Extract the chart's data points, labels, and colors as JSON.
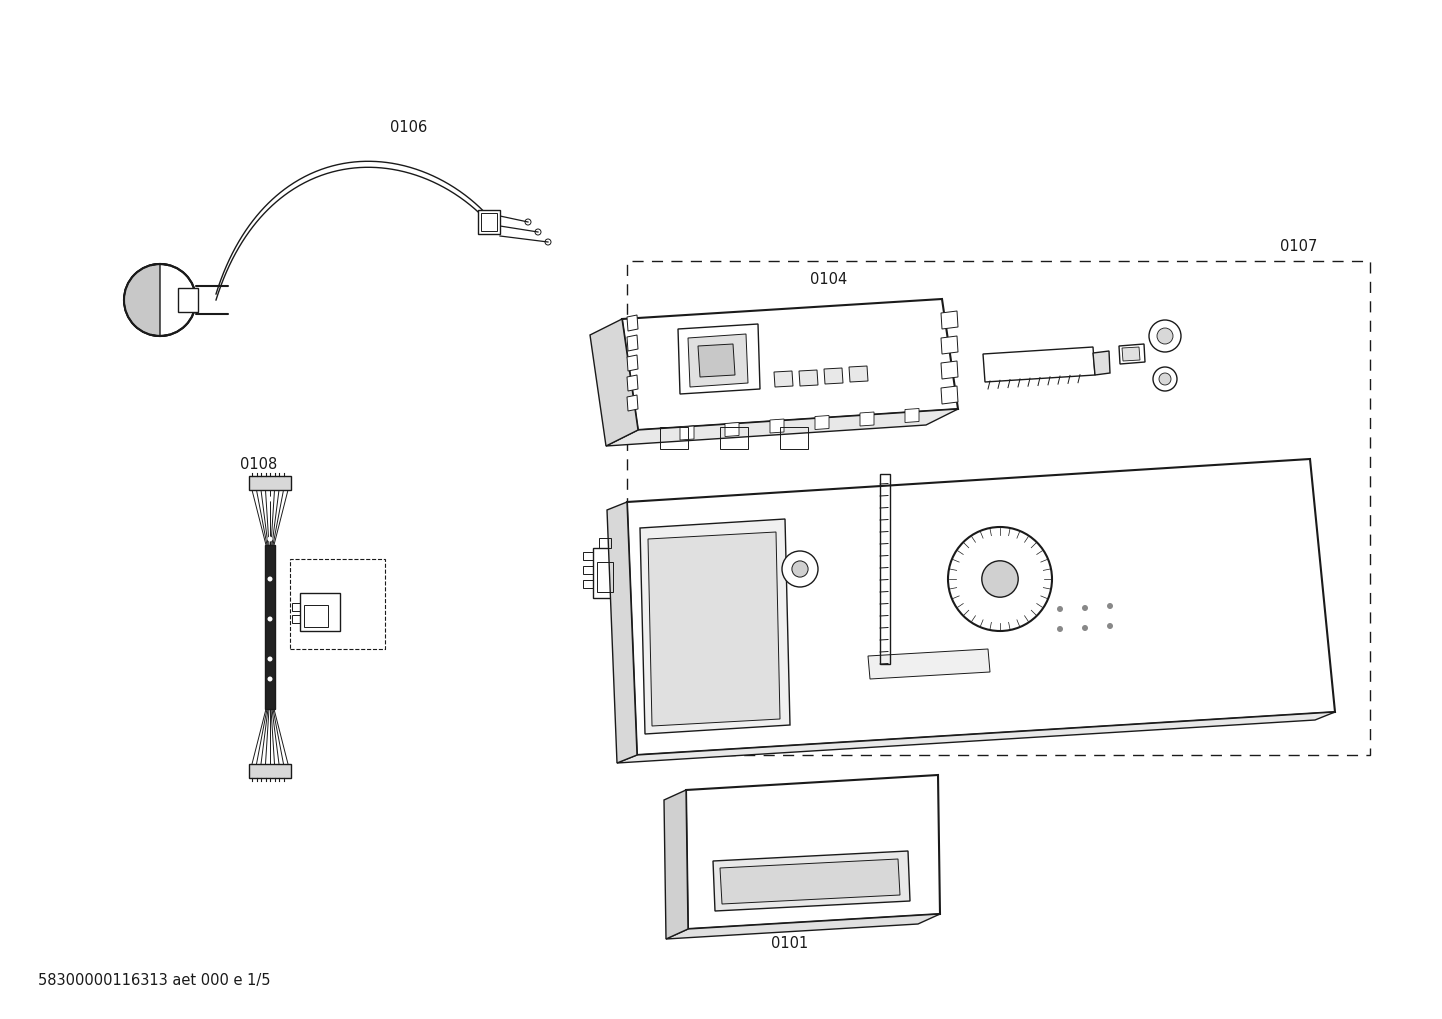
{
  "footer_text": "58300000116313 aet 000 e 1/5",
  "bg_color": "#ffffff",
  "line_color": "#1a1a1a",
  "label_color": "#1a1a1a",
  "label_fontsize": 10.5,
  "footer_fontsize": 10.5,
  "fig_w": 14.42,
  "fig_h": 10.19,
  "dpi": 100
}
